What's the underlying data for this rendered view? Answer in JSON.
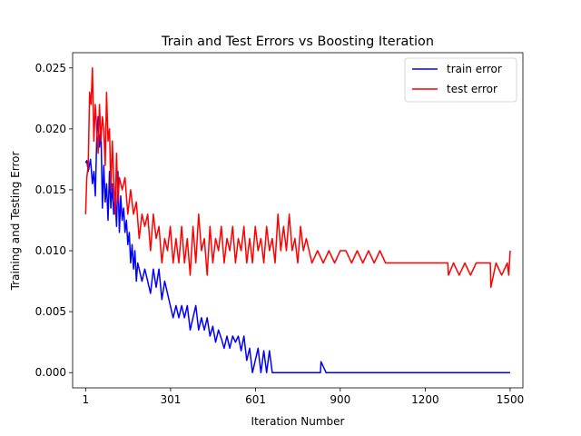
{
  "chart_data": {
    "type": "line",
    "title": "Train and Test Errors vs Boosting Iteration",
    "xlabel": "Iteration Number",
    "ylabel": "Training and Testing Error",
    "xlim": [
      -45,
      1545
    ],
    "ylim": [
      -0.00125,
      0.02625
    ],
    "xticks": [
      1,
      301,
      601,
      900,
      1200,
      1500
    ],
    "yticks": [
      "0.000",
      "0.005",
      "0.010",
      "0.015",
      "0.020",
      "0.025"
    ],
    "grid": false,
    "legend_position": "top-right",
    "series": [
      {
        "name": "train error",
        "color": "#0000ff",
        "x": [
          1,
          5,
          10,
          18,
          25,
          30,
          35,
          40,
          45,
          50,
          55,
          60,
          65,
          70,
          75,
          80,
          85,
          90,
          95,
          100,
          105,
          110,
          115,
          120,
          125,
          130,
          135,
          140,
          145,
          150,
          155,
          160,
          165,
          170,
          175,
          180,
          185,
          190,
          200,
          210,
          220,
          230,
          240,
          250,
          260,
          270,
          280,
          290,
          300,
          310,
          320,
          330,
          340,
          350,
          360,
          370,
          380,
          390,
          400,
          410,
          420,
          430,
          440,
          450,
          460,
          470,
          480,
          490,
          500,
          510,
          520,
          530,
          540,
          550,
          560,
          570,
          580,
          590,
          600,
          610,
          620,
          630,
          640,
          650,
          660,
          680,
          700,
          750,
          800,
          830,
          832,
          850,
          900,
          1000,
          1100,
          1200,
          1300,
          1400,
          1500
        ],
        "y": [
          0.0172,
          0.0174,
          0.0165,
          0.0175,
          0.0155,
          0.0165,
          0.0145,
          0.019,
          0.021,
          0.0185,
          0.02,
          0.0135,
          0.017,
          0.014,
          0.0155,
          0.0125,
          0.0165,
          0.0135,
          0.0155,
          0.013,
          0.0145,
          0.012,
          0.0165,
          0.0115,
          0.0145,
          0.0125,
          0.0135,
          0.0115,
          0.0125,
          0.0105,
          0.0115,
          0.009,
          0.0105,
          0.0085,
          0.01,
          0.0075,
          0.009,
          0.0085,
          0.0075,
          0.0085,
          0.0075,
          0.0065,
          0.0085,
          0.007,
          0.0085,
          0.006,
          0.0075,
          0.0065,
          0.0055,
          0.0045,
          0.0055,
          0.0045,
          0.0055,
          0.0045,
          0.0055,
          0.0035,
          0.0045,
          0.0055,
          0.0035,
          0.0045,
          0.0035,
          0.0045,
          0.003,
          0.0038,
          0.0025,
          0.0035,
          0.0028,
          0.002,
          0.003,
          0.002,
          0.003,
          0.0025,
          0.003,
          0.0018,
          0.003,
          0.001,
          0.002,
          0.0,
          0.001,
          0.002,
          0.0,
          0.0018,
          0.0,
          0.0018,
          0.0,
          0.0,
          0.0,
          0.0,
          0.0,
          0.0,
          0.0009,
          0.0,
          0.0,
          0.0,
          0.0,
          0.0,
          0.0,
          0.0,
          0.0
        ]
      },
      {
        "name": "test error",
        "color": "#ff0000",
        "x": [
          1,
          5,
          10,
          15,
          20,
          25,
          30,
          35,
          40,
          45,
          50,
          55,
          60,
          65,
          70,
          75,
          80,
          85,
          90,
          95,
          100,
          105,
          110,
          115,
          120,
          130,
          140,
          150,
          160,
          170,
          180,
          190,
          200,
          210,
          220,
          230,
          240,
          250,
          260,
          270,
          280,
          290,
          300,
          310,
          320,
          330,
          340,
          350,
          360,
          370,
          380,
          390,
          400,
          410,
          420,
          430,
          440,
          450,
          460,
          470,
          480,
          490,
          500,
          510,
          520,
          530,
          540,
          550,
          560,
          570,
          580,
          590,
          600,
          610,
          620,
          630,
          640,
          650,
          660,
          670,
          680,
          690,
          700,
          710,
          720,
          730,
          740,
          750,
          760,
          770,
          780,
          790,
          800,
          820,
          840,
          860,
          880,
          900,
          920,
          940,
          960,
          980,
          1000,
          1020,
          1040,
          1060,
          1080,
          1100,
          1150,
          1200,
          1250,
          1280,
          1282,
          1300,
          1320,
          1340,
          1360,
          1380,
          1400,
          1420,
          1430,
          1432,
          1450,
          1470,
          1490,
          1495,
          1500
        ],
        "y": [
          0.013,
          0.016,
          0.017,
          0.023,
          0.022,
          0.025,
          0.019,
          0.022,
          0.02,
          0.018,
          0.022,
          0.019,
          0.021,
          0.02,
          0.017,
          0.023,
          0.019,
          0.02,
          0.015,
          0.019,
          0.016,
          0.013,
          0.018,
          0.014,
          0.016,
          0.015,
          0.016,
          0.013,
          0.015,
          0.013,
          0.014,
          0.011,
          0.013,
          0.012,
          0.013,
          0.01,
          0.013,
          0.011,
          0.012,
          0.009,
          0.011,
          0.01,
          0.012,
          0.009,
          0.011,
          0.009,
          0.012,
          0.009,
          0.011,
          0.008,
          0.012,
          0.009,
          0.013,
          0.01,
          0.011,
          0.008,
          0.012,
          0.009,
          0.011,
          0.01,
          0.012,
          0.009,
          0.011,
          0.01,
          0.012,
          0.009,
          0.011,
          0.01,
          0.012,
          0.009,
          0.011,
          0.009,
          0.012,
          0.01,
          0.011,
          0.009,
          0.012,
          0.01,
          0.011,
          0.009,
          0.013,
          0.01,
          0.012,
          0.01,
          0.013,
          0.01,
          0.011,
          0.009,
          0.012,
          0.01,
          0.011,
          0.01,
          0.009,
          0.01,
          0.009,
          0.01,
          0.009,
          0.01,
          0.01,
          0.009,
          0.01,
          0.009,
          0.01,
          0.009,
          0.01,
          0.009,
          0.009,
          0.009,
          0.009,
          0.009,
          0.009,
          0.009,
          0.008,
          0.009,
          0.008,
          0.009,
          0.008,
          0.009,
          0.009,
          0.009,
          0.009,
          0.007,
          0.009,
          0.008,
          0.009,
          0.008,
          0.01
        ]
      }
    ]
  }
}
